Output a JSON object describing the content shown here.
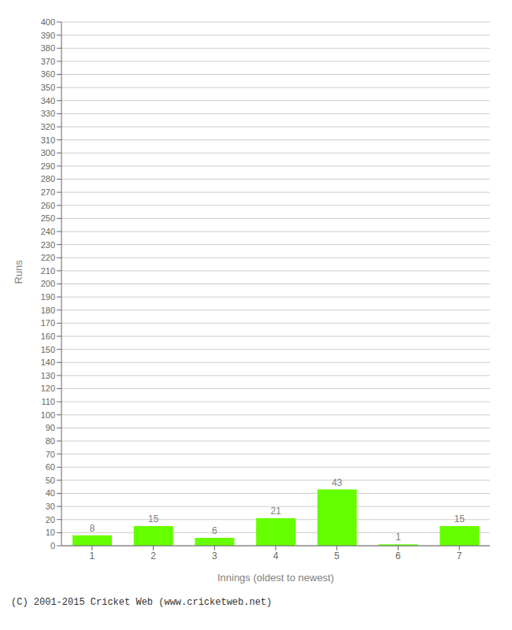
{
  "chart_data": {
    "type": "bar",
    "categories": [
      "1",
      "2",
      "3",
      "4",
      "5",
      "6",
      "7"
    ],
    "values": [
      8,
      15,
      6,
      21,
      43,
      1,
      15
    ],
    "color": "#66ff00",
    "xlabel": "Innings (oldest to newest)",
    "ylabel": "Runs",
    "ylim": [
      0,
      400
    ],
    "yticks": [
      0,
      10,
      20,
      30,
      40,
      50,
      60,
      70,
      80,
      90,
      100,
      110,
      120,
      130,
      140,
      150,
      160,
      170,
      180,
      190,
      200,
      210,
      220,
      230,
      240,
      250,
      260,
      270,
      280,
      290,
      300,
      310,
      320,
      330,
      340,
      350,
      360,
      370,
      380,
      390,
      400
    ],
    "grid": true,
    "data_labels": true,
    "annotations": [
      "(C) 2001-2015 Cricket Web (www.cricketweb.net)"
    ]
  }
}
